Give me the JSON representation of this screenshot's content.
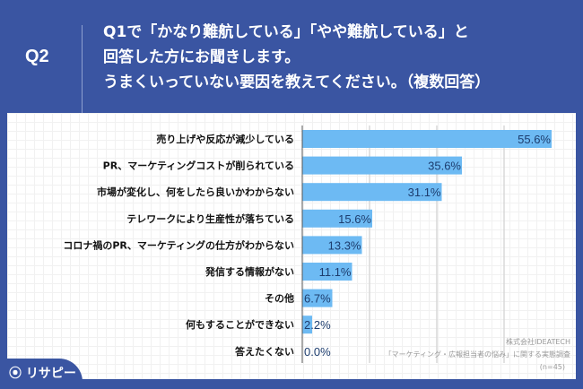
{
  "header": {
    "q_label": "Q2",
    "title_lines": [
      "Q1で「かなり難航している」「やや難航している」と",
      "回答した方にお聞きします。",
      "うまくいっていない要因を教えてください。（複数回答）"
    ]
  },
  "chart_data": {
    "type": "bar",
    "orientation": "horizontal",
    "categories": [
      "売り上げや反応が減少している",
      "PR、マーケティングコストが削られている",
      "市場が変化し、何をしたら良いかわからない",
      "テレワークにより生産性が落ちている",
      "コロナ禍のPR、マーケティングの仕方がわからない",
      "発信する情報がない",
      "その他",
      "何もすることができない",
      "答えたくない"
    ],
    "values": [
      55.6,
      35.6,
      31.1,
      15.6,
      13.3,
      11.1,
      6.7,
      2.2,
      0.0
    ],
    "value_labels": [
      "55.6%",
      "35.6%",
      "31.1%",
      "15.6%",
      "13.3%",
      "11.1%",
      "6.7%",
      "2.2%",
      "0.0%"
    ],
    "xlim": [
      0,
      60
    ],
    "grid": true,
    "unit": "%",
    "bar_color": "#6dbaf3",
    "label_color": "#1d3d6e"
  },
  "footer": {
    "company": "株式会社IDEATECH",
    "survey": "「マーケティング・広報担当者の悩み」に関する実態調査",
    "n": "(n=45)",
    "logo": "リサピー"
  }
}
